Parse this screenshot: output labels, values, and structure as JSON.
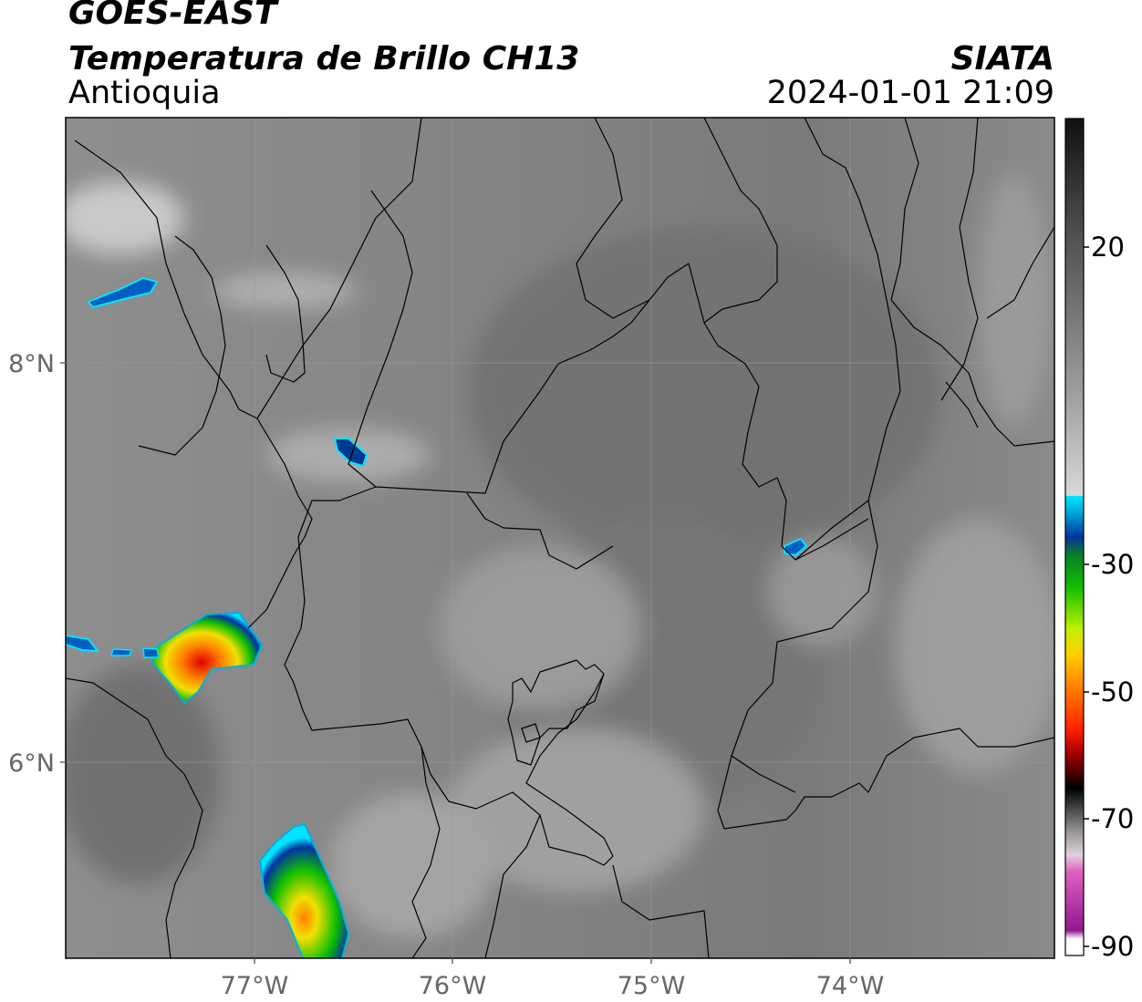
{
  "header": {
    "satellite": "GOES-EAST",
    "product": "Temperatura de Brillo CH13",
    "region": "Antioquia",
    "agency": "SIATA",
    "datetime": "2024-01-01 21:09"
  },
  "map": {
    "lat_labels": [
      "8°N",
      "6°N"
    ],
    "lon_labels": [
      "77°W",
      "76°W",
      "75°W",
      "74°W"
    ]
  },
  "colorbar": {
    "tick_labels": [
      "20",
      "-30",
      "-50",
      "-70",
      "-90"
    ],
    "colors": {
      "cyan": "#00e5ff",
      "blue": "#0033a0",
      "green": "#10c000",
      "yellow": "#f0e000",
      "orange": "#ff8000",
      "red": "#e00000",
      "black": "#000000",
      "pink": "#e060c0",
      "purple": "#901890"
    }
  }
}
